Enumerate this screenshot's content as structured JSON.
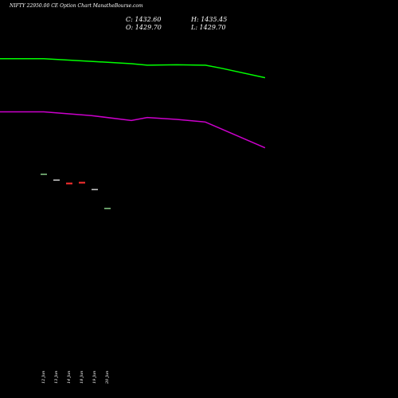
{
  "header": {
    "title": "NIFTY 22950.00  CE Option  Chart ManatheBourse.com",
    "close_label": "C: 1432.60",
    "high_label": "H: 1435.45",
    "open_label": "O: 1429.70",
    "low_label": "L: 1429.70"
  },
  "chart_data": {
    "type": "line",
    "title": "NIFTY 22950.00  CE Option  Chart ManatheBourse.com",
    "x_ticks": [
      "12 Jun",
      "13 Jun",
      "14 Jun",
      "18 Jun",
      "19 Jun",
      "20 Jun"
    ],
    "series": [
      {
        "kind": "line",
        "color": "#00ff00",
        "x": [
          0,
          1,
          2,
          3,
          4,
          5,
          6,
          7,
          8
        ],
        "values": [
          1495,
          1495,
          1488,
          1482,
          1478,
          1479,
          1478,
          1470,
          1445
        ]
      },
      {
        "kind": "line",
        "color": "#cc00cc",
        "x": [
          0,
          1,
          2,
          3,
          4,
          5,
          6,
          7,
          8
        ],
        "values": [
          1355,
          1355,
          1345,
          1332,
          1340,
          1335,
          1328,
          1310,
          1260
        ]
      }
    ],
    "candles": [
      {
        "date": "12 Jun",
        "value": 1190,
        "color": "#aaffaa"
      },
      {
        "date": "13 Jun",
        "value": 1175,
        "color": "#ffffff"
      },
      {
        "date": "14 Jun",
        "value": 1166,
        "color": "#ff3030"
      },
      {
        "date": "18 Jun",
        "value": 1168,
        "color": "#ff3030"
      },
      {
        "date": "19 Jun",
        "value": 1150,
        "color": "#ffffff"
      },
      {
        "date": "20 Jun",
        "value": 1100,
        "color": "#aaffaa"
      }
    ],
    "ylim": [
      600,
      1650
    ],
    "grid": false,
    "legend": "none"
  }
}
